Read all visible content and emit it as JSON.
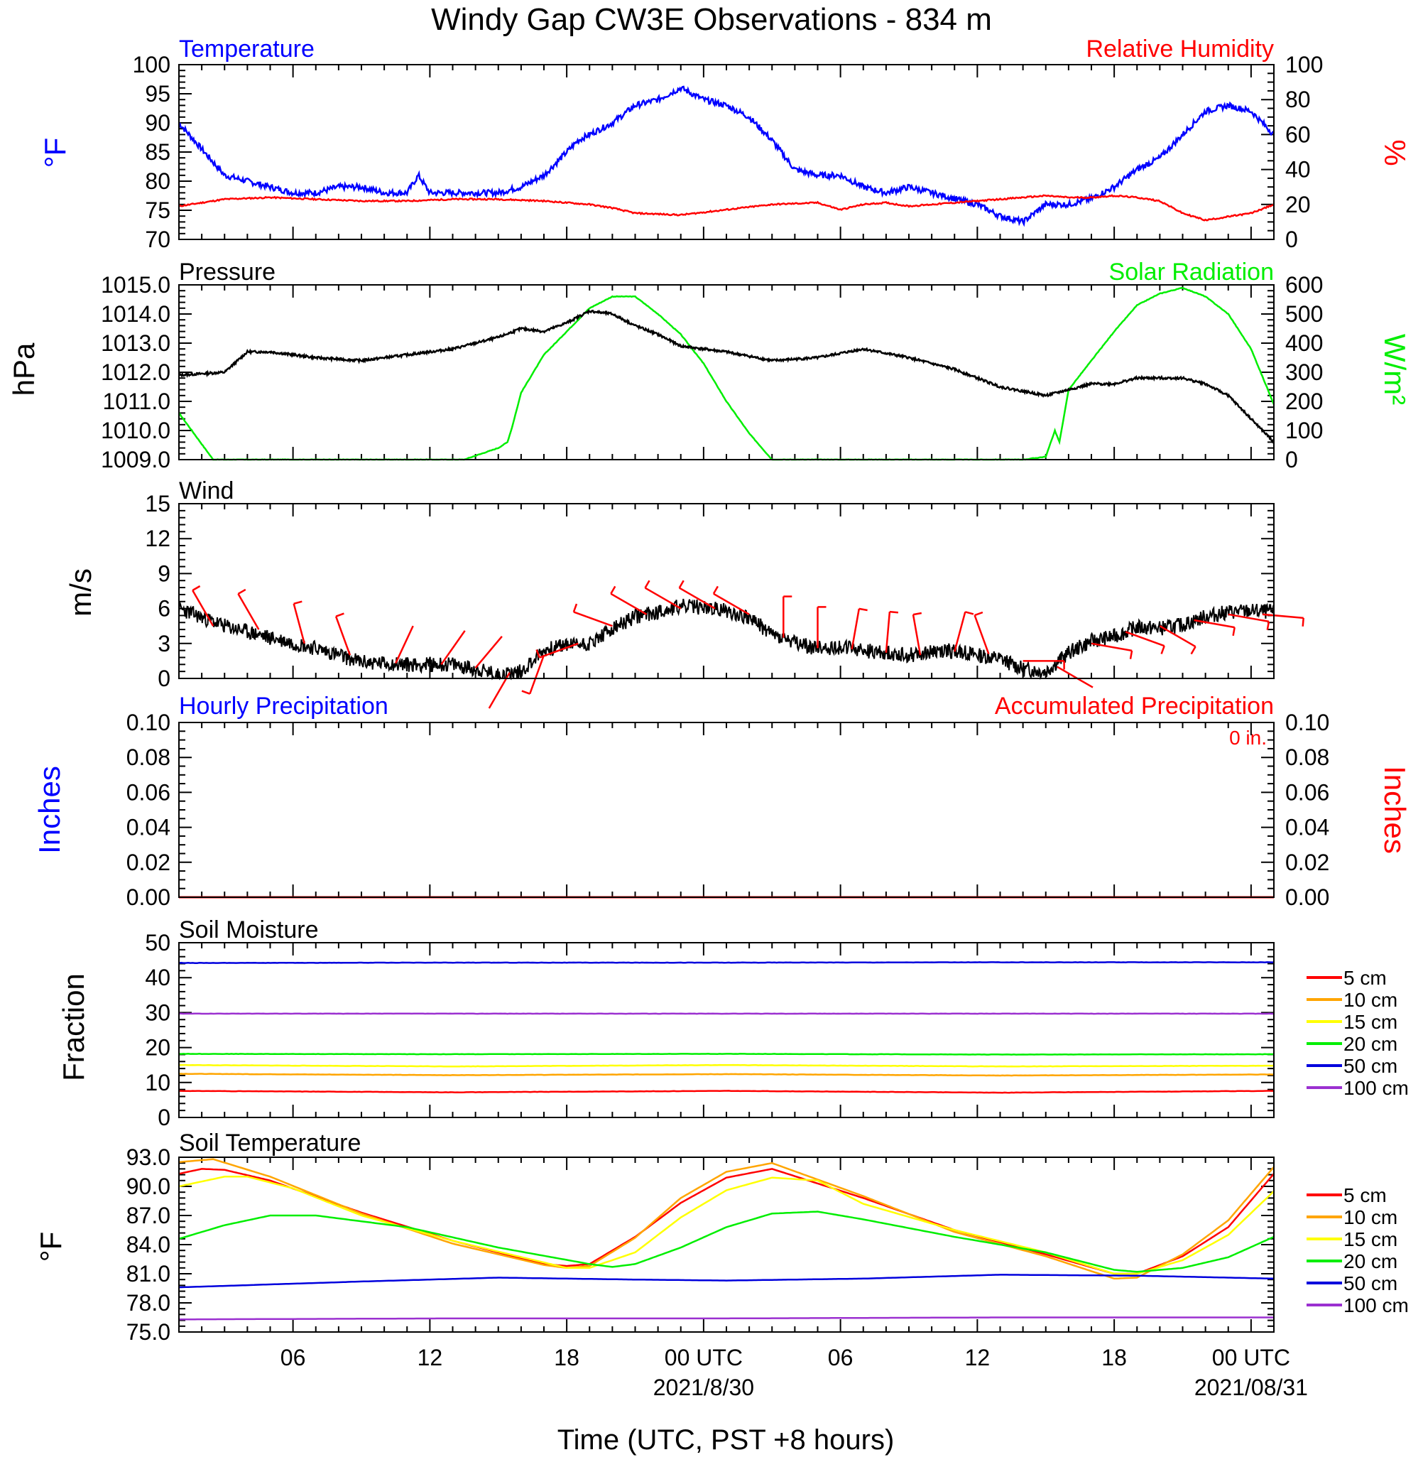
{
  "title": "Windy Gap CW3E Observations - 834 m",
  "xlabel": "Time (UTC, PST +8 hours)",
  "x_ticks": [
    "06",
    "12",
    "18",
    "00 UTC",
    "06",
    "12",
    "18",
    "00 UTC"
  ],
  "x_dates": [
    "2021/8/30",
    "2021/08/31"
  ],
  "colors": {
    "temp": "#0000ff",
    "rh": "#ff0000",
    "pressure": "#000000",
    "solar": "#00ee00",
    "wind": "#000000",
    "barb": "#ff0000",
    "precip_hourly": "#0000ff",
    "precip_accum": "#ff0000"
  },
  "panels": {
    "temp_rh": {
      "left_title": "Temperature",
      "right_title": "Relative Humidity",
      "left_ylabel": "°F",
      "right_ylabel": "%",
      "left_ticks": [
        "100",
        "95",
        "90",
        "85",
        "80",
        "75",
        "70"
      ],
      "right_ticks": [
        "100",
        "80",
        "60",
        "40",
        "20",
        "0"
      ]
    },
    "pressure_solar": {
      "left_title": "Pressure",
      "right_title": "Solar Radiation",
      "left_ylabel": "hPa",
      "right_ylabel": "W/m²",
      "left_ticks": [
        "1015.0",
        "1014.0",
        "1013.0",
        "1012.0",
        "1011.0",
        "1010.0",
        "1009.0"
      ],
      "right_ticks": [
        "600",
        "500",
        "400",
        "300",
        "200",
        "100",
        "0"
      ]
    },
    "wind": {
      "left_title": "Wind",
      "left_ylabel": "m/s",
      "left_ticks": [
        "15",
        "12",
        "9",
        "6",
        "3",
        "0"
      ]
    },
    "precip": {
      "left_title": "Hourly Precipitation",
      "right_title": "Accumulated Precipitation",
      "accum_text": "0 in.",
      "left_ylabel": "Inches",
      "right_ylabel": "Inches",
      "left_ticks": [
        "0.10",
        "0.08",
        "0.06",
        "0.04",
        "0.02",
        "0.00"
      ],
      "right_ticks": [
        "0.10",
        "0.08",
        "0.06",
        "0.04",
        "0.02",
        "0.00"
      ]
    },
    "soil_moist": {
      "left_title": "Soil Moisture",
      "left_ylabel": "Fraction",
      "left_ticks": [
        "50",
        "40",
        "30",
        "20",
        "10",
        "0"
      ]
    },
    "soil_temp": {
      "left_title": "Soil Temperature",
      "left_ylabel": "°F",
      "left_ticks": [
        "93.0",
        "90.0",
        "87.0",
        "84.0",
        "81.0",
        "78.0",
        "75.0"
      ]
    }
  },
  "soil_legend": [
    {
      "label": "5 cm",
      "color": "#ff0000"
    },
    {
      "label": "10 cm",
      "color": "#ffa500"
    },
    {
      "label": "15 cm",
      "color": "#ffff00"
    },
    {
      "label": "20 cm",
      "color": "#00ee00"
    },
    {
      "label": "50 cm",
      "color": "#0000dd"
    },
    {
      "label": "100 cm",
      "color": "#9b30d0"
    }
  ],
  "chart_data": {
    "type": "line",
    "x_unit": "hours UTC from 2021-08-29 01:00",
    "x_range": [
      0,
      48
    ],
    "temperature_F": {
      "x": [
        0,
        2,
        3,
        4,
        5,
        6,
        7,
        8,
        9,
        10,
        11,
        10.5,
        12,
        13,
        14,
        15,
        16,
        17,
        17.5,
        18,
        19,
        20,
        21,
        22,
        23,
        24,
        25,
        26,
        27,
        28,
        29,
        30,
        31,
        32,
        33,
        34,
        35,
        36,
        37,
        38,
        39,
        40,
        41,
        42,
        43,
        44,
        45,
        46,
        47,
        48
      ],
      "y": [
        90,
        81,
        80,
        79,
        78,
        78,
        79,
        79,
        78,
        78,
        78,
        81,
        78,
        78,
        78,
        79,
        81,
        85,
        87,
        88,
        90,
        93,
        94,
        96,
        94,
        93,
        91,
        87,
        82,
        81,
        81,
        79,
        78,
        79,
        78,
        77,
        76,
        74,
        73,
        76,
        76,
        77,
        79,
        82,
        84,
        88,
        92,
        93,
        92,
        88
      ],
      "ylim": [
        70,
        100
      ]
    },
    "relative_humidity_pct": {
      "x": [
        0,
        2,
        4,
        6,
        8,
        10,
        12,
        14,
        16,
        18,
        19,
        20,
        22,
        24,
        26,
        28,
        29,
        30,
        31,
        32,
        34,
        36,
        38,
        39,
        40,
        41,
        42,
        43,
        44,
        45,
        46,
        47,
        48
      ],
      "y": [
        19,
        23,
        24,
        23,
        22,
        22,
        23,
        23,
        22,
        20,
        18,
        15,
        14,
        17,
        20,
        21,
        17,
        20,
        21,
        19,
        21,
        23,
        25,
        24,
        24,
        25,
        24,
        22,
        15,
        11,
        13,
        15,
        20
      ],
      "ylim": [
        0,
        100
      ]
    },
    "pressure_hPa": {
      "x": [
        0,
        2,
        3,
        4,
        6,
        8,
        10,
        12,
        14,
        15,
        16,
        17,
        18,
        19,
        20,
        21,
        22,
        24,
        26,
        28,
        30,
        32,
        34,
        36,
        38,
        39,
        40,
        41,
        42,
        44,
        45,
        46,
        47,
        48
      ],
      "y": [
        1011.9,
        1012.0,
        1012.7,
        1012.7,
        1012.5,
        1012.4,
        1012.6,
        1012.8,
        1013.2,
        1013.5,
        1013.4,
        1013.7,
        1014.1,
        1014.0,
        1013.6,
        1013.3,
        1012.9,
        1012.7,
        1012.4,
        1012.5,
        1012.8,
        1012.5,
        1012.1,
        1011.5,
        1011.2,
        1011.4,
        1011.6,
        1011.6,
        1011.8,
        1011.8,
        1011.6,
        1011.2,
        1010.4,
        1009.6
      ],
      "ylim": [
        1009,
        1015
      ]
    },
    "solar_Wm2": {
      "x": [
        0,
        1.5,
        12.5,
        14,
        14.4,
        14.6,
        15,
        16,
        17,
        18,
        19,
        20,
        21,
        22,
        23,
        24,
        25,
        26,
        37,
        38,
        38.4,
        38.6,
        39,
        40,
        41,
        42,
        43,
        44,
        45,
        46,
        47,
        48
      ],
      "y": [
        160,
        0,
        0,
        40,
        60,
        110,
        230,
        360,
        440,
        520,
        560,
        560,
        500,
        430,
        330,
        200,
        90,
        0,
        0,
        10,
        100,
        60,
        240,
        340,
        440,
        530,
        570,
        590,
        560,
        500,
        380,
        190
      ],
      "ylim": [
        0,
        600
      ]
    },
    "wind_speed_ms": {
      "x": [
        0,
        2,
        4,
        6,
        8,
        10,
        12,
        13,
        14,
        15,
        16,
        17,
        18,
        19,
        20,
        21,
        22,
        23,
        24,
        25,
        26,
        27,
        28,
        29,
        30,
        31,
        32,
        33,
        34,
        35,
        36,
        37,
        38,
        39,
        40,
        41,
        42,
        43,
        44,
        45,
        46,
        47,
        48
      ],
      "y": [
        6.0,
        4.5,
        3.5,
        2.6,
        1.4,
        1.2,
        1.2,
        0.8,
        0.3,
        0.6,
        2.4,
        2.9,
        3.0,
        4.2,
        5.3,
        5.7,
        6.2,
        6.1,
        5.8,
        5.2,
        3.8,
        3.0,
        2.6,
        2.7,
        2.4,
        2.2,
        2.0,
        2.3,
        2.4,
        2.0,
        1.7,
        0.8,
        0.6,
        2.2,
        3.2,
        3.6,
        4.4,
        4.3,
        4.6,
        5.3,
        5.7,
        5.8,
        5.7
      ],
      "ylim": [
        0,
        15
      ]
    },
    "wind_barbs": {
      "x": [
        1.5,
        3.5,
        5.5,
        7.5,
        9.5,
        11.5,
        13,
        14.5,
        16,
        17.5,
        19,
        20.5,
        22,
        23.5,
        25,
        26.5,
        28,
        29.5,
        31,
        32.5,
        34,
        35.5,
        37,
        38.5,
        40,
        41.5,
        43,
        44.5,
        46,
        47.5
      ],
      "speed_ms": [
        4.5,
        4.2,
        3.0,
        2.0,
        1.3,
        1.2,
        0.9,
        0.5,
        2.0,
        3.0,
        4.5,
        5.5,
        6.0,
        6.0,
        5.5,
        3.5,
        2.6,
        2.5,
        2.2,
        2.0,
        2.3,
        2.1,
        1.5,
        1.0,
        3.0,
        4.0,
        4.5,
        5.0,
        5.5,
        5.5
      ],
      "direction_deg": [
        330,
        330,
        345,
        340,
        25,
        35,
        40,
        210,
        200,
        250,
        290,
        300,
        300,
        300,
        300,
        360,
        0,
        10,
        5,
        350,
        15,
        340,
        90,
        120,
        100,
        110,
        120,
        100,
        100,
        95
      ]
    },
    "hourly_precip_in": {
      "x": [
        0,
        48
      ],
      "y": [
        0,
        0
      ],
      "ylim": [
        0,
        0.1
      ]
    },
    "accumulated_precip_in": {
      "x": [
        0,
        48
      ],
      "y": [
        0,
        0
      ],
      "ylim": [
        0,
        0.1
      ]
    },
    "soil_moisture": {
      "ylim": [
        0,
        50
      ],
      "series": [
        {
          "name": "5 cm",
          "x": [
            0,
            12,
            24,
            36,
            48
          ],
          "y": [
            7.6,
            7.2,
            7.6,
            7.1,
            7.6
          ]
        },
        {
          "name": "10 cm",
          "x": [
            0,
            12,
            24,
            36,
            48
          ],
          "y": [
            12.5,
            12.1,
            12.4,
            12.0,
            12.3
          ]
        },
        {
          "name": "15 cm",
          "x": [
            0,
            12,
            24,
            36,
            48
          ],
          "y": [
            15.0,
            14.6,
            15.0,
            14.6,
            14.8
          ]
        },
        {
          "name": "20 cm",
          "x": [
            0,
            12,
            24,
            36,
            48
          ],
          "y": [
            18.2,
            18.1,
            18.2,
            18.0,
            18.1
          ]
        },
        {
          "name": "50 cm",
          "x": [
            0,
            12,
            24,
            36,
            48
          ],
          "y": [
            44.2,
            44.3,
            44.3,
            44.4,
            44.4
          ]
        },
        {
          "name": "100 cm",
          "x": [
            0,
            12,
            24,
            36,
            48
          ],
          "y": [
            29.7,
            29.7,
            29.7,
            29.7,
            29.7
          ]
        }
      ]
    },
    "soil_temperature_F": {
      "ylim": [
        75,
        93
      ],
      "series": [
        {
          "name": "5 cm",
          "x": [
            0,
            1,
            2,
            4,
            8,
            12,
            16,
            17,
            18,
            20,
            22,
            24,
            26,
            30,
            34,
            38,
            41,
            42,
            44,
            46,
            48
          ],
          "y": [
            91.3,
            91.8,
            91.7,
            90.6,
            87.3,
            84.4,
            82.0,
            81.8,
            82.0,
            84.8,
            88.3,
            90.9,
            91.8,
            88.8,
            85.5,
            83.0,
            81.0,
            81.0,
            82.8,
            85.8,
            91.3
          ]
        },
        {
          "name": "10 cm",
          "x": [
            0,
            1,
            1.5,
            4,
            8,
            12,
            16,
            17,
            18,
            20,
            22,
            24,
            26,
            30,
            34,
            38,
            41,
            42,
            44,
            46,
            48
          ],
          "y": [
            92.5,
            92.7,
            92.8,
            91.0,
            87.2,
            84.1,
            81.9,
            81.6,
            81.8,
            84.7,
            88.8,
            91.5,
            92.4,
            89.0,
            85.3,
            82.8,
            80.5,
            80.6,
            83.0,
            86.5,
            92.0
          ]
        },
        {
          "name": "15 cm",
          "x": [
            0,
            2,
            3,
            5,
            8,
            12,
            17,
            18,
            20,
            22,
            24,
            26,
            28,
            30,
            34,
            38,
            41,
            42,
            44,
            46,
            48
          ],
          "y": [
            90.0,
            91.0,
            91.0,
            89.8,
            87.0,
            84.4,
            81.6,
            81.6,
            83.2,
            86.8,
            89.6,
            90.9,
            90.6,
            88.2,
            85.5,
            83.2,
            81.0,
            81.0,
            82.4,
            85.0,
            89.5
          ]
        },
        {
          "name": "20 cm",
          "x": [
            0,
            2,
            4,
            6,
            10,
            14,
            18,
            19,
            20,
            22,
            24,
            26,
            28,
            30,
            34,
            38,
            40,
            41,
            42,
            44,
            46,
            48
          ],
          "y": [
            84.6,
            86.0,
            87.0,
            87.0,
            85.8,
            83.7,
            82.0,
            81.7,
            82.0,
            83.7,
            85.8,
            87.2,
            87.4,
            86.6,
            84.8,
            83.2,
            82.0,
            81.4,
            81.2,
            81.6,
            82.7,
            84.8
          ]
        },
        {
          "name": "50 cm",
          "x": [
            0,
            8,
            14,
            20,
            24,
            30,
            36,
            42,
            48
          ],
          "y": [
            79.6,
            80.2,
            80.6,
            80.4,
            80.3,
            80.5,
            80.9,
            80.8,
            80.5
          ]
        },
        {
          "name": "100 cm",
          "x": [
            0,
            12,
            24,
            36,
            48
          ],
          "y": [
            76.3,
            76.4,
            76.4,
            76.5,
            76.5
          ]
        }
      ]
    }
  }
}
